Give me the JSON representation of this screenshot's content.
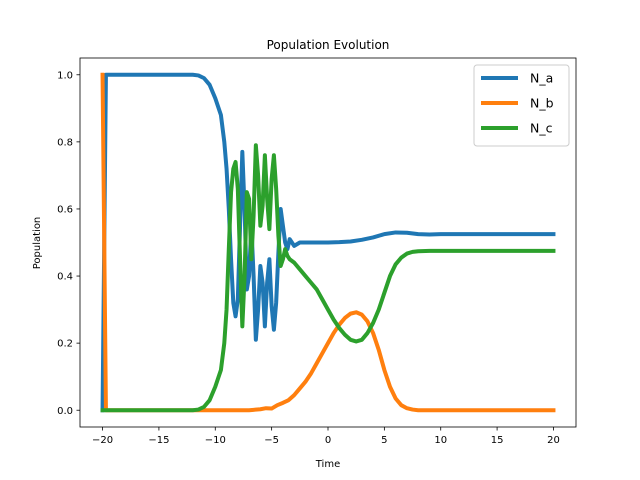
{
  "chart_data": {
    "type": "line",
    "title": "Population Evolution",
    "xlabel": "Time",
    "ylabel": "Population",
    "xlim": [
      -22,
      22
    ],
    "ylim": [
      -0.05,
      1.05
    ],
    "xticks": [
      -20,
      -15,
      -10,
      -5,
      0,
      5,
      10,
      15,
      20
    ],
    "xtick_labels": [
      "−20",
      "−15",
      "−10",
      "−5",
      "0",
      "5",
      "10",
      "15",
      "20"
    ],
    "yticks": [
      0.0,
      0.2,
      0.4,
      0.6,
      0.8,
      1.0
    ],
    "ytick_labels": [
      "0.0",
      "0.2",
      "0.4",
      "0.6",
      "0.8",
      "1.0"
    ],
    "grid": false,
    "legend_position": "top-right",
    "series": [
      {
        "name": "N_a",
        "color": "#1f77b4",
        "points": [
          [
            -20,
            0.0
          ],
          [
            -19.7,
            1.0
          ],
          [
            -19.5,
            1.0
          ],
          [
            -18,
            1.0
          ],
          [
            -16,
            1.0
          ],
          [
            -14,
            1.0
          ],
          [
            -12,
            1.0
          ],
          [
            -11.5,
            0.998
          ],
          [
            -11,
            0.99
          ],
          [
            -10.5,
            0.97
          ],
          [
            -10,
            0.93
          ],
          [
            -9.5,
            0.88
          ],
          [
            -9.2,
            0.8
          ],
          [
            -9.0,
            0.72
          ],
          [
            -8.8,
            0.6
          ],
          [
            -8.6,
            0.45
          ],
          [
            -8.4,
            0.32
          ],
          [
            -8.2,
            0.28
          ],
          [
            -8.0,
            0.33
          ],
          [
            -7.8,
            0.55
          ],
          [
            -7.6,
            0.77
          ],
          [
            -7.4,
            0.6
          ],
          [
            -7.2,
            0.36
          ],
          [
            -7.0,
            0.4
          ],
          [
            -6.8,
            0.55
          ],
          [
            -6.6,
            0.4
          ],
          [
            -6.4,
            0.21
          ],
          [
            -6.2,
            0.3
          ],
          [
            -6.0,
            0.43
          ],
          [
            -5.8,
            0.38
          ],
          [
            -5.6,
            0.25
          ],
          [
            -5.4,
            0.38
          ],
          [
            -5.2,
            0.45
          ],
          [
            -5.0,
            0.31
          ],
          [
            -4.8,
            0.24
          ],
          [
            -4.6,
            0.32
          ],
          [
            -4.4,
            0.47
          ],
          [
            -4.2,
            0.6
          ],
          [
            -4.0,
            0.55
          ],
          [
            -3.8,
            0.5
          ],
          [
            -3.6,
            0.48
          ],
          [
            -3.4,
            0.51
          ],
          [
            -3.2,
            0.5
          ],
          [
            -3.0,
            0.49
          ],
          [
            -2.5,
            0.5
          ],
          [
            -2.0,
            0.5
          ],
          [
            -1.0,
            0.5
          ],
          [
            0.0,
            0.5
          ],
          [
            1.0,
            0.501
          ],
          [
            2.0,
            0.503
          ],
          [
            3.0,
            0.508
          ],
          [
            4.0,
            0.515
          ],
          [
            5.0,
            0.525
          ],
          [
            6.0,
            0.53
          ],
          [
            7.0,
            0.529
          ],
          [
            8.0,
            0.525
          ],
          [
            9.0,
            0.524
          ],
          [
            10.0,
            0.525
          ],
          [
            12.0,
            0.525
          ],
          [
            15.0,
            0.525
          ],
          [
            18.0,
            0.525
          ],
          [
            20.0,
            0.525
          ]
        ]
      },
      {
        "name": "N_b",
        "color": "#ff7f0e",
        "points": [
          [
            -20,
            1.0
          ],
          [
            -19.7,
            0.0
          ],
          [
            -18,
            0.0
          ],
          [
            -15,
            0.0
          ],
          [
            -12,
            0.0
          ],
          [
            -10,
            0.0
          ],
          [
            -8,
            0.0
          ],
          [
            -7,
            0.0
          ],
          [
            -6,
            0.003
          ],
          [
            -5.5,
            0.006
          ],
          [
            -5,
            0.005
          ],
          [
            -4.5,
            0.015
          ],
          [
            -4,
            0.022
          ],
          [
            -3.5,
            0.03
          ],
          [
            -3,
            0.045
          ],
          [
            -2.5,
            0.065
          ],
          [
            -2,
            0.085
          ],
          [
            -1.5,
            0.11
          ],
          [
            -1,
            0.14
          ],
          [
            -0.5,
            0.17
          ],
          [
            0,
            0.2
          ],
          [
            0.5,
            0.23
          ],
          [
            1,
            0.255
          ],
          [
            1.5,
            0.275
          ],
          [
            2,
            0.288
          ],
          [
            2.5,
            0.292
          ],
          [
            3,
            0.285
          ],
          [
            3.5,
            0.265
          ],
          [
            4,
            0.23
          ],
          [
            4.5,
            0.18
          ],
          [
            5,
            0.12
          ],
          [
            5.5,
            0.07
          ],
          [
            6,
            0.035
          ],
          [
            6.5,
            0.015
          ],
          [
            7,
            0.006
          ],
          [
            7.5,
            0.002
          ],
          [
            8,
            0.0
          ],
          [
            10,
            0.0
          ],
          [
            12,
            0.0
          ],
          [
            15,
            0.0
          ],
          [
            18,
            0.0
          ],
          [
            20,
            0.0
          ]
        ]
      },
      {
        "name": "N_c",
        "color": "#2ca02c",
        "points": [
          [
            -20,
            0.0
          ],
          [
            -18,
            0.0
          ],
          [
            -15,
            0.0
          ],
          [
            -12,
            0.0
          ],
          [
            -11.5,
            0.002
          ],
          [
            -11,
            0.01
          ],
          [
            -10.5,
            0.03
          ],
          [
            -10,
            0.07
          ],
          [
            -9.5,
            0.12
          ],
          [
            -9.2,
            0.2
          ],
          [
            -9.0,
            0.3
          ],
          [
            -8.8,
            0.48
          ],
          [
            -8.6,
            0.65
          ],
          [
            -8.4,
            0.72
          ],
          [
            -8.2,
            0.74
          ],
          [
            -8.0,
            0.66
          ],
          [
            -7.8,
            0.45
          ],
          [
            -7.6,
            0.25
          ],
          [
            -7.4,
            0.4
          ],
          [
            -7.2,
            0.65
          ],
          [
            -7.0,
            0.63
          ],
          [
            -6.8,
            0.45
          ],
          [
            -6.6,
            0.58
          ],
          [
            -6.4,
            0.79
          ],
          [
            -6.2,
            0.7
          ],
          [
            -6.0,
            0.55
          ],
          [
            -5.8,
            0.61
          ],
          [
            -5.6,
            0.76
          ],
          [
            -5.4,
            0.63
          ],
          [
            -5.2,
            0.54
          ],
          [
            -5.0,
            0.69
          ],
          [
            -4.8,
            0.76
          ],
          [
            -4.6,
            0.66
          ],
          [
            -4.4,
            0.52
          ],
          [
            -4.2,
            0.43
          ],
          [
            -4.0,
            0.45
          ],
          [
            -3.8,
            0.48
          ],
          [
            -3.6,
            0.46
          ],
          [
            -3.4,
            0.45
          ],
          [
            -3.0,
            0.44
          ],
          [
            -2.5,
            0.42
          ],
          [
            -2.0,
            0.4
          ],
          [
            -1.5,
            0.38
          ],
          [
            -1.0,
            0.36
          ],
          [
            -0.5,
            0.33
          ],
          [
            0,
            0.3
          ],
          [
            0.5,
            0.27
          ],
          [
            1,
            0.245
          ],
          [
            1.5,
            0.225
          ],
          [
            2,
            0.21
          ],
          [
            2.5,
            0.205
          ],
          [
            3,
            0.21
          ],
          [
            3.5,
            0.23
          ],
          [
            4,
            0.26
          ],
          [
            4.5,
            0.3
          ],
          [
            5,
            0.35
          ],
          [
            5.5,
            0.4
          ],
          [
            6,
            0.435
          ],
          [
            6.5,
            0.455
          ],
          [
            7,
            0.467
          ],
          [
            7.5,
            0.472
          ],
          [
            8,
            0.474
          ],
          [
            9,
            0.475
          ],
          [
            10,
            0.475
          ],
          [
            12,
            0.475
          ],
          [
            15,
            0.475
          ],
          [
            18,
            0.475
          ],
          [
            20,
            0.475
          ]
        ]
      }
    ]
  }
}
